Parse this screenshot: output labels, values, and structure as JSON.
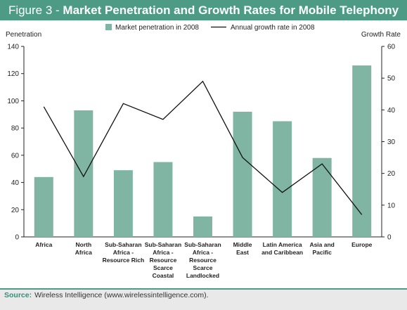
{
  "title": {
    "figure_label": "Figure 3",
    "separator": " - ",
    "main": "Market Penetration and Growth Rates for Mobile Telephony"
  },
  "colors": {
    "title_bar": "#4d9b85",
    "bar": "#7fb5a2",
    "line": "#111111"
  },
  "chart_data": {
    "type": "bar+line",
    "categories": [
      [
        "Africa"
      ],
      [
        "North",
        "Africa"
      ],
      [
        "Sub-Saharan",
        "Africa -",
        "Resource Rich"
      ],
      [
        "Sub-Saharan",
        "Africa -",
        "Resource",
        "Scarce",
        "Coastal"
      ],
      [
        "Sub-Saharan",
        "Africa -",
        "Resource",
        "Scarce",
        "Landlocked"
      ],
      [
        "Middle",
        "East"
      ],
      [
        "Latin America",
        "and Caribbean"
      ],
      [
        "Asia and",
        "Pacific"
      ],
      [
        "Europe"
      ]
    ],
    "series": [
      {
        "name": "Market penetration in 2008",
        "type": "bar",
        "axis": "left",
        "values": [
          44,
          93,
          49,
          55,
          15,
          92,
          85,
          58,
          126
        ]
      },
      {
        "name": "Annual growth rate in 2008",
        "type": "line",
        "axis": "right",
        "values": [
          41,
          19,
          42,
          37,
          49,
          25,
          14,
          23,
          7
        ]
      }
    ],
    "ylabel": "Penetration",
    "y2label": "Growth Rate",
    "ylim": [
      0,
      140
    ],
    "yticks": [
      0,
      20,
      40,
      60,
      80,
      100,
      120,
      140
    ],
    "y2lim": [
      0,
      60
    ],
    "y2ticks": [
      0,
      10,
      20,
      30,
      40,
      50,
      60
    ],
    "legend_position": "top-center",
    "grid": false
  },
  "source": {
    "label": "Source:",
    "text": "Wireless Intelligence (www.wirelessintelligence.com)."
  }
}
